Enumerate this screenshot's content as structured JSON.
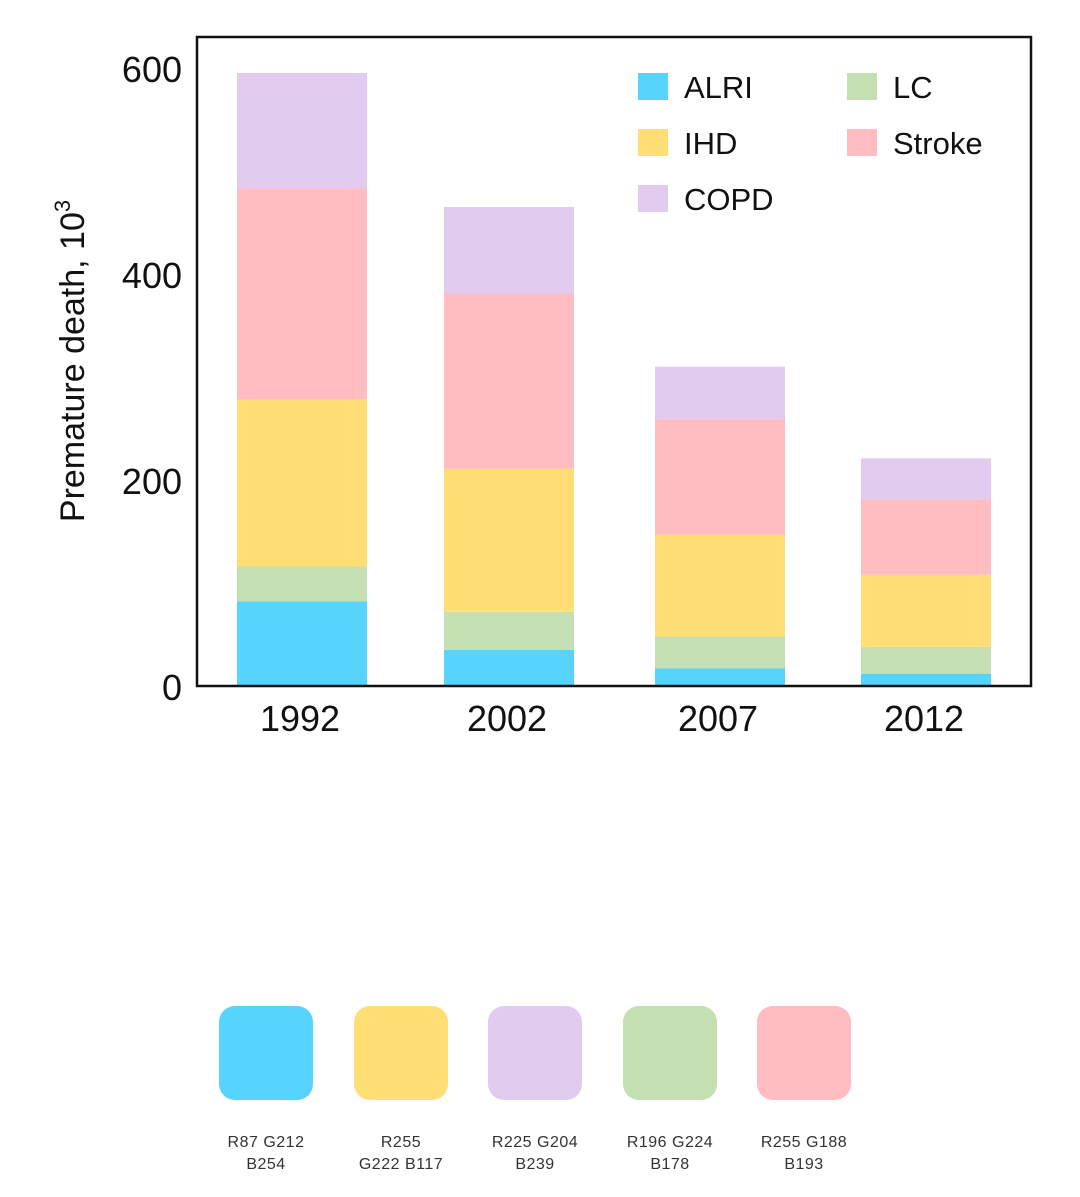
{
  "chart_data": {
    "type": "bar",
    "stacked": true,
    "categories": [
      "1992",
      "2002",
      "2007",
      "2012"
    ],
    "series": [
      {
        "name": "ALRI",
        "color": "#57D4FE",
        "values": [
          82,
          35,
          17,
          12
        ]
      },
      {
        "name": "LC",
        "color": "#C4E0B2",
        "values": [
          34,
          37,
          31,
          26
        ]
      },
      {
        "name": "IHD",
        "color": "#FFDE75",
        "values": [
          162,
          139,
          99,
          70
        ]
      },
      {
        "name": "Stroke",
        "color": "#FFBCC1",
        "values": [
          205,
          170,
          112,
          73
        ]
      },
      {
        "name": "COPD",
        "color": "#E1CCEF",
        "values": [
          112,
          84,
          51,
          40
        ]
      }
    ],
    "legend_order": [
      "ALRI",
      "LC",
      "IHD",
      "Stroke",
      "COPD"
    ],
    "ylabel": "Premature death, 10",
    "ylabel_superscript": "3",
    "xlabel": "",
    "ylim": [
      0,
      630
    ],
    "yticks": [
      0,
      200,
      400,
      600
    ],
    "legend_position": "top-right"
  },
  "swatches": [
    {
      "name": "blue",
      "color": "#57D4FE",
      "label": "R87 G212\nB254"
    },
    {
      "name": "yellow",
      "color": "#FFDE75",
      "label": "R255\nG222 B117"
    },
    {
      "name": "purple",
      "color": "#E1CCEF",
      "label": "R225 G204\nB239"
    },
    {
      "name": "green",
      "color": "#C4E0B2",
      "label": "R196 G224\nB178"
    },
    {
      "name": "pink",
      "color": "#FFBCC1",
      "label": "R255 G188\nB193"
    }
  ]
}
